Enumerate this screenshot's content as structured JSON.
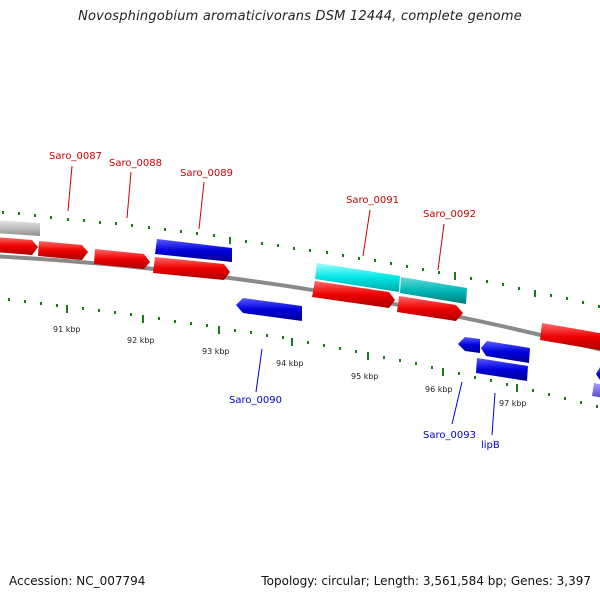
{
  "title": "Novosphingobium aromaticivorans DSM 12444, complete genome",
  "accession": "Accession: NC_007794",
  "summary": "Topology: circular; Length: 3,561,584 bp; Genes: 3,397",
  "ruler_labels": [
    "91 kbp",
    "92 kbp",
    "93 kbp",
    "94 kbp",
    "95 kbp",
    "96 kbp",
    "97 kbp"
  ],
  "gene_labels": {
    "saro_0087": "Saro_0087",
    "saro_0088": "Saro_0088",
    "saro_0089": "Saro_0089",
    "saro_0090": "Saro_0090",
    "saro_0091": "Saro_0091",
    "saro_0092": "Saro_0092",
    "saro_0093": "Saro_0093",
    "lipb": "lipB"
  },
  "colors": {
    "forward_gene": "#ee0000",
    "reverse_gene": "#0000dd",
    "rna_gene": "#00e5e5",
    "rna_gene_dark": "#00b8b8",
    "other_feature": "#c0c0c0",
    "backbone": "#888888",
    "tick": "#1a7a1a",
    "label_forward": "#cc0000",
    "label_reverse": "#0000cc"
  }
}
